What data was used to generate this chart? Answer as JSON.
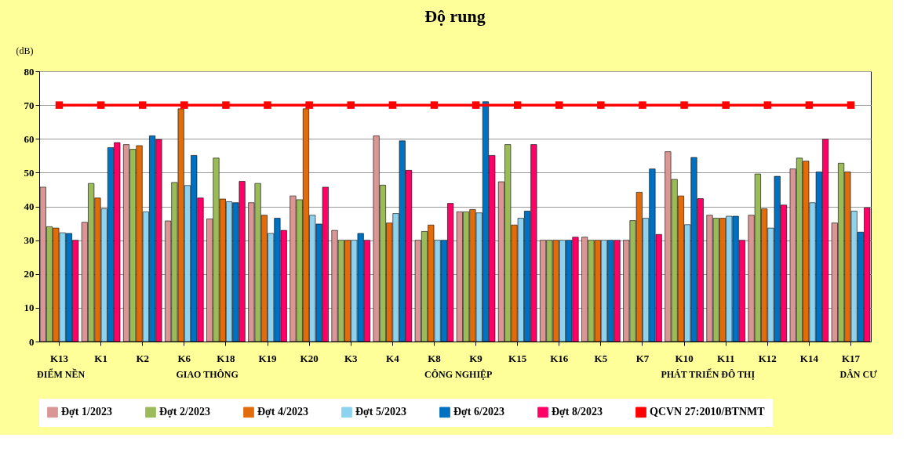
{
  "chart_data": {
    "type": "bar",
    "title": "Độ rung",
    "ylabel": "(dB)",
    "categories": [
      "K13",
      "K1",
      "K2",
      "K6",
      "K18",
      "K19",
      "K20",
      "K3",
      "K4",
      "K8",
      "K9",
      "K15",
      "K16",
      "K5",
      "K7",
      "K10",
      "K11",
      "K12",
      "K14",
      "K17"
    ],
    "series": [
      {
        "name": "Đợt 1/2023",
        "color": "#d99694",
        "values": [
          45.7,
          35.3,
          58.3,
          35.7,
          36.3,
          41.1,
          43.1,
          32.9,
          60.9,
          30,
          38.4,
          47.3,
          30,
          30.9,
          30,
          56.2,
          37.4,
          37.4,
          51.1,
          35.1
        ]
      },
      {
        "name": "Đợt 2/2023",
        "color": "#9bbb59",
        "values": [
          34,
          46.8,
          56.9,
          47.1,
          54.3,
          46.8,
          42,
          30,
          46.3,
          32.6,
          38.4,
          58.3,
          30,
          30,
          35.8,
          48,
          36.5,
          49.6,
          54.3,
          52.8
        ]
      },
      {
        "name": "Đợt 4/2023",
        "color": "#e36c0a",
        "values": [
          33.6,
          42.5,
          58,
          68.9,
          42.2,
          37.4,
          68.9,
          30,
          35.1,
          34.5,
          39.1,
          34.5,
          30,
          30,
          44.2,
          43.1,
          36.5,
          39.3,
          53.4,
          50.2
        ]
      },
      {
        "name": "Đợt 5/2023",
        "color": "#8dd3f0",
        "values": [
          32.2,
          39.3,
          38.4,
          46.2,
          41.4,
          32,
          37.4,
          30,
          37.9,
          30,
          38.1,
          36.5,
          30,
          30,
          36.5,
          34.6,
          37.1,
          33.6,
          41.1,
          38.6
        ]
      },
      {
        "name": "Đợt 6/2023",
        "color": "#0070c0",
        "values": [
          32,
          57.4,
          60.9,
          55.1,
          41.1,
          36.5,
          34.8,
          32,
          59.4,
          30,
          71,
          38.6,
          30,
          30,
          51.1,
          54.5,
          37.1,
          48.9,
          50.2,
          32.4
        ]
      },
      {
        "name": "Đợt 8/2023",
        "color": "#ff0066",
        "values": [
          30,
          58.9,
          59.8,
          42.5,
          47.4,
          32.9,
          45.7,
          30,
          50.7,
          40.9,
          55.1,
          58.3,
          30.9,
          30,
          31.7,
          42.3,
          30,
          40.4,
          59.9,
          39.6
        ]
      },
      {
        "name": "QCVN 27:2010/BTNMT",
        "color": "#ff0000",
        "type": "line",
        "marker": "square",
        "values": [
          70,
          70,
          70,
          70,
          70,
          70,
          70,
          70,
          70,
          70,
          70,
          70,
          70,
          70,
          70,
          70,
          70,
          70,
          70,
          70
        ]
      }
    ],
    "annotations": [
      "ĐIỂM NỀN",
      "GIAO THÔNG",
      "CÔNG NGHIỆP",
      "PHÁT TRIỂN ĐÔ THỊ",
      "DÂN CƯ"
    ],
    "ylim": [
      0,
      80
    ],
    "yticks": [
      0,
      10,
      20,
      30,
      40,
      50,
      60,
      70,
      80
    ],
    "grid": "y",
    "legend": "bottom"
  }
}
